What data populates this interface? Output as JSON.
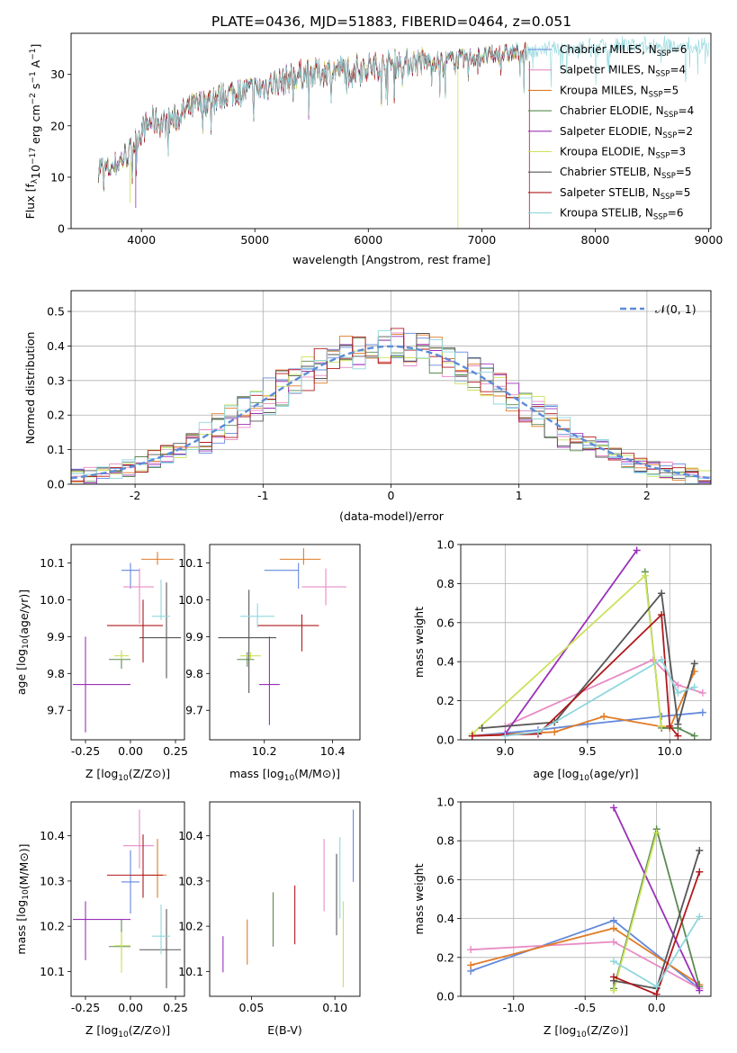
{
  "title": "PLATE=0436, MJD=51883, FIBERID=0464, z=0.051",
  "colors": {
    "c0": "#6389dc",
    "c1": "#e88bc4",
    "c2": "#e07b27",
    "c3": "#5a8a52",
    "c4": "#9b30b8",
    "c5": "#cbe25a",
    "c6": "#555555",
    "c7": "#b0191d",
    "c8": "#8fd7dd"
  },
  "legend_p1": [
    {
      "base": "Chabrier MILES, N",
      "sub": "SSP",
      "tail": "=6"
    },
    {
      "base": "Salpeter MILES, N",
      "sub": "SSP",
      "tail": "=4"
    },
    {
      "base": "Kroupa MILES, N",
      "sub": "SSP",
      "tail": "=5"
    },
    {
      "base": "Chabrier ELODIE, N",
      "sub": "SSP",
      "tail": "=4"
    },
    {
      "base": "Salpeter ELODIE, N",
      "sub": "SSP",
      "tail": "=2"
    },
    {
      "base": "Kroupa ELODIE, N",
      "sub": "SSP",
      "tail": "=3"
    },
    {
      "base": "Chabrier STELIB, N",
      "sub": "SSP",
      "tail": "=5"
    },
    {
      "base": "Salpeter STELIB, N",
      "sub": "SSP",
      "tail": "=5"
    },
    {
      "base": "Kroupa STELIB, N",
      "sub": "SSP",
      "tail": "=6"
    }
  ],
  "legend_p2": "𝒩(0, 1)",
  "chart_data": [
    {
      "id": "spectrum",
      "type": "line",
      "xlabel": "wavelength [Angstrom, rest frame]",
      "ylabel": "Flux [fλ10⁻¹⁷ erg cm⁻² s⁻¹ A⁻¹]",
      "xlim": [
        3380,
        9020
      ],
      "ylim": [
        0,
        38
      ],
      "xticks": [
        4000,
        5000,
        6000,
        7000,
        8000,
        9000
      ],
      "yticks": [
        0,
        10,
        20,
        30
      ],
      "continuum": {
        "x": [
          3620,
          3700,
          3800,
          3900,
          4000,
          4100,
          4200,
          4300,
          4400,
          4600,
          4800,
          5000,
          5200,
          5400,
          5600,
          5800,
          6000,
          6200,
          6400,
          6600,
          6800,
          7000,
          7200,
          7400,
          7600,
          7800,
          8000,
          8200,
          8400,
          8600,
          8800,
          8950
        ],
        "y": [
          12,
          11.5,
          13,
          15,
          19,
          21,
          20.5,
          21.5,
          23,
          25,
          26.5,
          27,
          28.5,
          30,
          30.5,
          31,
          31.5,
          32,
          32.5,
          32.5,
          33,
          33.5,
          34,
          34.5,
          35,
          35,
          35,
          35.5,
          35.5,
          35.5,
          35.5,
          35.5
        ]
      },
      "model_end_x": [
        7400,
        7400,
        7400,
        7400,
        7400,
        7400,
        7400,
        7400,
        9000
      ],
      "series": [
        {
          "name": "Chabrier MILES, NSSP=6"
        },
        {
          "name": "Salpeter MILES, NSSP=4"
        },
        {
          "name": "Kroupa MILES, NSSP=5"
        },
        {
          "name": "Chabrier ELODIE, NSSP=4"
        },
        {
          "name": "Salpeter ELODIE, NSSP=2"
        },
        {
          "name": "Kroupa ELODIE, NSSP=3"
        },
        {
          "name": "Chabrier STELIB, NSSP=5"
        },
        {
          "name": "Salpeter STELIB, NSSP=5"
        },
        {
          "name": "Kroupa STELIB, NSSP=6"
        }
      ]
    },
    {
      "id": "residuals",
      "type": "line",
      "xlabel": "(data-model)/error",
      "ylabel": "Normed distribution",
      "xlim": [
        -2.5,
        2.5
      ],
      "ylim": [
        0,
        0.56
      ],
      "xticks": [
        -2,
        -1,
        0,
        1,
        2
      ],
      "yticks": [
        0.0,
        0.1,
        0.2,
        0.3,
        0.4,
        0.5
      ],
      "grid": true,
      "legend": "upper right",
      "bin_width": 0.1,
      "bin_edges": [
        -2.5,
        2.5
      ],
      "normal_pdf": {
        "mean": 0,
        "sigma": 1
      }
    },
    {
      "id": "age_vs_Z",
      "type": "scatter",
      "xlabel": "Z [log10(Z/Z⊙)]",
      "ylabel": "age  [log10(age/yr)]",
      "xlim": [
        -0.33,
        0.3
      ],
      "ylim": [
        9.62,
        10.15
      ],
      "xticks": [
        -0.25,
        0.0,
        0.25
      ],
      "yticks": [
        9.7,
        9.8,
        9.9,
        10.0,
        10.1
      ],
      "points": [
        {
          "x": 0.0,
          "y": 10.08,
          "xerr": [
            0.05,
            0.05
          ],
          "yerr": [
            0.05,
            0.02
          ]
        },
        {
          "x": 0.05,
          "y": 10.035,
          "xerr": [
            0.09,
            0.08
          ],
          "yerr": [
            0.1,
            0.05
          ]
        },
        {
          "x": 0.15,
          "y": 10.11,
          "xerr": [
            0.09,
            0.09
          ],
          "yerr": [
            0.015,
            0.02
          ]
        },
        {
          "x": -0.05,
          "y": 9.838,
          "xerr": [
            0.07,
            0.05
          ],
          "yerr": [
            0.025,
            0.02
          ]
        },
        {
          "x": -0.25,
          "y": 9.77,
          "xerr": [
            0.07,
            0.25
          ],
          "yerr": [
            0.13,
            0.13
          ]
        },
        {
          "x": -0.05,
          "y": 9.848,
          "xerr": [
            0.04,
            0.04
          ],
          "yerr": [
            0.01,
            0.015
          ]
        },
        {
          "x": 0.2,
          "y": 9.897,
          "xerr": [
            0.15,
            0.08
          ],
          "yerr": [
            0.11,
            0.15
          ]
        },
        {
          "x": 0.07,
          "y": 9.93,
          "xerr": [
            0.2,
            0.11
          ],
          "yerr": [
            0.1,
            0.07
          ]
        },
        {
          "x": 0.17,
          "y": 9.955,
          "xerr": [
            0.05,
            0.05
          ],
          "yerr": [
            0.01,
            0.1
          ]
        }
      ]
    },
    {
      "id": "age_vs_mass",
      "type": "scatter",
      "xlabel": "mass [log10(M/M⊙)]",
      "ylabel": "",
      "xlim": [
        10.04,
        10.48
      ],
      "ylim": [
        9.62,
        10.15
      ],
      "xticks": [
        10.2,
        10.4
      ],
      "yticks": [
        9.7,
        9.8,
        9.9,
        10.0,
        10.1
      ],
      "points": [
        {
          "x": 10.3,
          "y": 10.08,
          "xerr": [
            0.1,
            0.0
          ],
          "yerr": [
            0.05,
            0.02
          ]
        },
        {
          "x": 10.38,
          "y": 10.035,
          "xerr": [
            0.07,
            0.06
          ],
          "yerr": [
            0.05,
            0.05
          ]
        },
        {
          "x": 10.315,
          "y": 10.11,
          "xerr": [
            0.07,
            0.05
          ],
          "yerr": [
            0.015,
            0.03
          ]
        },
        {
          "x": 10.15,
          "y": 9.838,
          "xerr": [
            0.03,
            0.02
          ],
          "yerr": [
            0.02,
            0.02
          ]
        },
        {
          "x": 10.215,
          "y": 9.77,
          "xerr": [
            0.03,
            0.03
          ],
          "yerr": [
            0.11,
            0.13
          ]
        },
        {
          "x": 10.16,
          "y": 9.848,
          "xerr": [
            0.03,
            0.03
          ],
          "yerr": [
            0.01,
            0.01
          ]
        },
        {
          "x": 10.155,
          "y": 9.897,
          "xerr": [
            0.09,
            0.08
          ],
          "yerr": [
            0.15,
            0.13
          ]
        },
        {
          "x": 10.31,
          "y": 9.93,
          "xerr": [
            0.13,
            0.05
          ],
          "yerr": [
            0.07,
            0.03
          ]
        },
        {
          "x": 10.18,
          "y": 9.955,
          "xerr": [
            0.05,
            0.05
          ],
          "yerr": [
            0.03,
            0.035
          ]
        }
      ]
    },
    {
      "id": "massweight_vs_age",
      "type": "line",
      "xlabel": "age  [log10(age/yr)]",
      "ylabel": "mass weight",
      "xlim": [
        8.73,
        10.25
      ],
      "ylim": [
        0,
        1.0
      ],
      "xticks": [
        9.0,
        9.5,
        10.0
      ],
      "yticks": [
        0.0,
        0.2,
        0.4,
        0.6,
        0.8,
        1.0
      ],
      "grid": true,
      "series": [
        {
          "x": [
            8.8,
            9.2,
            9.5,
            9.95,
            10.2
          ],
          "y": [
            0.02,
            0.05,
            0.08,
            0.12,
            0.14
          ]
        },
        {
          "x": [
            9.0,
            9.9,
            10.05,
            10.2
          ],
          "y": [
            0.07,
            0.41,
            0.28,
            0.24
          ]
        },
        {
          "x": [
            8.8,
            9.3,
            9.6,
            10.0,
            10.15
          ],
          "y": [
            0.02,
            0.04,
            0.12,
            0.06,
            0.35
          ]
        },
        {
          "x": [
            9.85,
            9.95,
            10.05,
            10.15
          ],
          "y": [
            0.86,
            0.06,
            0.06,
            0.02
          ]
        },
        {
          "x": [
            9.0,
            9.8
          ],
          "y": [
            0.03,
            0.97
          ]
        },
        {
          "x": [
            8.8,
            9.85,
            9.95
          ],
          "y": [
            0.03,
            0.84,
            0.07
          ]
        },
        {
          "x": [
            8.86,
            9.3,
            9.95,
            10.05,
            10.15
          ],
          "y": [
            0.06,
            0.09,
            0.75,
            0.08,
            0.39
          ]
        },
        {
          "x": [
            8.8,
            9.2,
            9.95,
            10.0,
            10.05
          ],
          "y": [
            0.02,
            0.03,
            0.64,
            0.07,
            0.02
          ]
        },
        {
          "x": [
            9.0,
            9.2,
            9.95,
            10.05,
            10.15
          ],
          "y": [
            0.02,
            0.04,
            0.41,
            0.24,
            0.27
          ]
        }
      ]
    },
    {
      "id": "mass_vs_Z",
      "type": "scatter",
      "xlabel": "Z [log10(Z/Z⊙)]",
      "ylabel": "mass [log10(M/M⊙)]",
      "xlim": [
        -0.33,
        0.3
      ],
      "ylim": [
        10.045,
        10.475
      ],
      "xticks": [
        -0.25,
        0.0,
        0.25
      ],
      "yticks": [
        10.1,
        10.2,
        10.3,
        10.4
      ],
      "points": [
        {
          "x": 0.0,
          "y": 10.298,
          "xerr": [
            0.05,
            0.05
          ],
          "yerr": [
            0.07,
            0.07
          ]
        },
        {
          "x": 0.05,
          "y": 10.378,
          "xerr": [
            0.09,
            0.08
          ],
          "yerr": [
            0.05,
            0.08
          ]
        },
        {
          "x": 0.15,
          "y": 10.313,
          "xerr": [
            0.09,
            0.05
          ],
          "yerr": [
            0.05,
            0.08
          ]
        },
        {
          "x": -0.05,
          "y": 10.155,
          "xerr": [
            0.07,
            0.05
          ],
          "yerr": [
            0.03,
            0.06
          ]
        },
        {
          "x": -0.25,
          "y": 10.215,
          "xerr": [
            0.07,
            0.25
          ],
          "yerr": [
            0.09,
            0.04
          ]
        },
        {
          "x": -0.05,
          "y": 10.157,
          "xerr": [
            0.04,
            0.05
          ],
          "yerr": [
            0.06,
            0.03
          ]
        },
        {
          "x": 0.2,
          "y": 10.148,
          "xerr": [
            0.15,
            0.08
          ],
          "yerr": [
            0.085,
            0.09
          ]
        },
        {
          "x": 0.07,
          "y": 10.313,
          "xerr": [
            0.2,
            0.11
          ],
          "yerr": [
            0.05,
            0.09
          ]
        },
        {
          "x": 0.17,
          "y": 10.178,
          "xerr": [
            0.05,
            0.05
          ],
          "yerr": [
            0.04,
            0.07
          ]
        }
      ]
    },
    {
      "id": "mass_vs_EBV",
      "type": "scatter",
      "xlabel": "E(B-V)",
      "ylabel": "",
      "xlim": [
        0.025,
        0.115
      ],
      "ylim": [
        10.045,
        10.475
      ],
      "xticks": [
        0.05,
        0.1
      ],
      "yticks": [
        10.1,
        10.2,
        10.3,
        10.4
      ],
      "points": [
        {
          "x": 0.111,
          "y": 10.378,
          "yerr": [
            0.08,
            0.08
          ]
        },
        {
          "x": 0.0935,
          "y": 10.313,
          "yerr": [
            0.08,
            0.08
          ]
        },
        {
          "x": 0.0475,
          "y": 10.165,
          "yerr": [
            0.05,
            0.05
          ]
        },
        {
          "x": 0.063,
          "y": 10.215,
          "yerr": [
            0.06,
            0.06
          ]
        },
        {
          "x": 0.033,
          "y": 10.138,
          "yerr": [
            0.04,
            0.04
          ]
        },
        {
          "x": 0.105,
          "y": 10.16,
          "yerr": [
            0.095,
            0.095
          ]
        },
        {
          "x": 0.101,
          "y": 10.27,
          "yerr": [
            0.09,
            0.09
          ]
        },
        {
          "x": 0.076,
          "y": 10.225,
          "yerr": [
            0.065,
            0.065
          ]
        },
        {
          "x": 0.103,
          "y": 10.307,
          "yerr": [
            0.09,
            0.09
          ]
        }
      ]
    },
    {
      "id": "massweight_vs_Z",
      "type": "line",
      "xlabel": "Z [log10(Z/Z⊙)]",
      "ylabel": "mass weight",
      "xlim": [
        -1.37,
        0.38
      ],
      "ylim": [
        0,
        1.0
      ],
      "xticks": [
        -1.0,
        -0.5,
        0.0
      ],
      "yticks": [
        0.0,
        0.2,
        0.4,
        0.6,
        0.8,
        1.0
      ],
      "grid": true,
      "series": [
        {
          "x": [
            -1.3,
            -0.3,
            0.3
          ],
          "y": [
            0.13,
            0.39,
            0.04
          ]
        },
        {
          "x": [
            -1.3,
            -0.3,
            0.3
          ],
          "y": [
            0.24,
            0.28,
            0.04
          ]
        },
        {
          "x": [
            -1.3,
            -0.3,
            0.3
          ],
          "y": [
            0.16,
            0.35,
            0.06
          ]
        },
        {
          "x": [
            -0.3,
            0.0,
            0.3
          ],
          "y": [
            0.04,
            0.86,
            0.05
          ]
        },
        {
          "x": [
            -0.3,
            0.3
          ],
          "y": [
            0.97,
            0.03
          ]
        },
        {
          "x": [
            -0.3,
            0.0
          ],
          "y": [
            0.03,
            0.84
          ]
        },
        {
          "x": [
            -0.3,
            0.0,
            0.3
          ],
          "y": [
            0.08,
            0.04,
            0.75
          ]
        },
        {
          "x": [
            -0.3,
            0.0,
            0.3
          ],
          "y": [
            0.1,
            0.01,
            0.64
          ]
        },
        {
          "x": [
            -0.3,
            0.0,
            0.3
          ],
          "y": [
            0.18,
            0.05,
            0.41
          ]
        }
      ]
    }
  ]
}
